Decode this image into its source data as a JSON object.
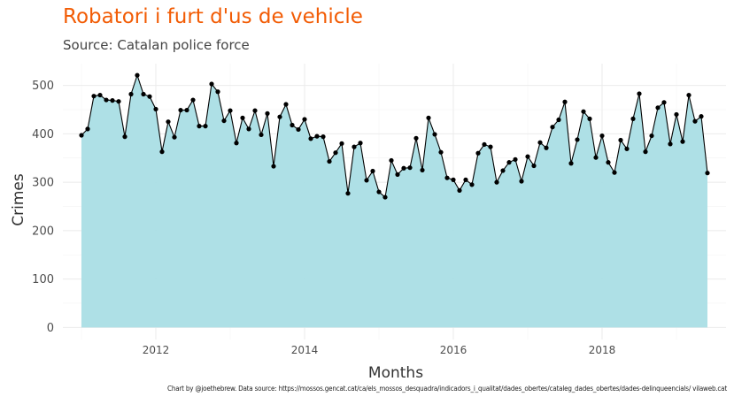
{
  "title": "Robatori i furt d'us de vehicle",
  "subtitle": "Source: Catalan police force",
  "caption": "Chart by @joethebrew. Data source: https://mossos.gencat.cat/ca/els_mossos_desquadra/indicadors_i_qualitat/dades_obertes/cataleg_dades_obertes/dades-delinqueencials/ vilaweb.cat",
  "colors": {
    "title": "#f25c05",
    "area": "#aadee5",
    "line": "#000000",
    "grid": "#ebebeb"
  },
  "chart_data": {
    "type": "area",
    "title": "Robatori i furt d'us de vehicle",
    "subtitle": "Source: Catalan police force",
    "xlabel": "Months",
    "ylabel": "Crimes",
    "x_ticks": [
      "2012",
      "2014",
      "2016",
      "2018"
    ],
    "y_ticks": [
      0,
      100,
      200,
      300,
      400,
      500
    ],
    "xlim": [
      "2010-10",
      "2019-09"
    ],
    "ylim": [
      -25,
      545
    ],
    "grid": true,
    "legend": "none",
    "x": [
      "2011-01",
      "2011-02",
      "2011-03",
      "2011-04",
      "2011-05",
      "2011-06",
      "2011-07",
      "2011-08",
      "2011-09",
      "2011-10",
      "2011-11",
      "2011-12",
      "2012-01",
      "2012-02",
      "2012-03",
      "2012-04",
      "2012-05",
      "2012-06",
      "2012-07",
      "2012-08",
      "2012-09",
      "2012-10",
      "2012-11",
      "2012-12",
      "2013-01",
      "2013-02",
      "2013-03",
      "2013-04",
      "2013-05",
      "2013-06",
      "2013-07",
      "2013-08",
      "2013-09",
      "2013-10",
      "2013-11",
      "2013-12",
      "2014-01",
      "2014-02",
      "2014-03",
      "2014-04",
      "2014-05",
      "2014-06",
      "2014-07",
      "2014-08",
      "2014-09",
      "2014-10",
      "2014-11",
      "2014-12",
      "2015-01",
      "2015-02",
      "2015-03",
      "2015-04",
      "2015-05",
      "2015-06",
      "2015-07",
      "2015-08",
      "2015-09",
      "2015-10",
      "2015-11",
      "2015-12",
      "2016-01",
      "2016-02",
      "2016-03",
      "2016-04",
      "2016-05",
      "2016-06",
      "2016-07",
      "2016-08",
      "2016-09",
      "2016-10",
      "2016-11",
      "2016-12",
      "2017-01",
      "2017-02",
      "2017-03",
      "2017-04",
      "2017-05",
      "2017-06",
      "2017-07",
      "2017-08",
      "2017-09",
      "2017-10",
      "2017-11",
      "2017-12",
      "2018-01",
      "2018-02",
      "2018-03",
      "2018-04",
      "2018-05",
      "2018-06",
      "2018-07",
      "2018-08",
      "2018-09",
      "2018-10",
      "2018-11",
      "2018-12",
      "2019-01",
      "2019-02",
      "2019-03",
      "2019-04",
      "2019-05",
      "2019-06"
    ],
    "values": [
      397,
      410,
      478,
      480,
      470,
      469,
      467,
      394,
      482,
      521,
      482,
      477,
      451,
      363,
      425,
      393,
      449,
      449,
      470,
      416,
      416,
      503,
      487,
      427,
      448,
      381,
      433,
      410,
      448,
      398,
      442,
      333,
      435,
      461,
      418,
      409,
      430,
      390,
      395,
      394,
      343,
      361,
      380,
      277,
      373,
      381,
      304,
      323,
      280,
      269,
      345,
      316,
      329,
      330,
      391,
      325,
      433,
      399,
      362,
      309,
      305,
      283,
      305,
      295,
      360,
      378,
      373,
      300,
      324,
      341,
      347,
      302,
      353,
      334,
      382,
      371,
      414,
      429,
      466,
      339,
      388,
      446,
      431,
      351,
      396,
      341,
      320,
      387,
      369,
      431,
      483,
      363,
      396,
      454,
      465,
      379,
      440,
      384,
      480,
      426,
      436,
      319
    ]
  }
}
